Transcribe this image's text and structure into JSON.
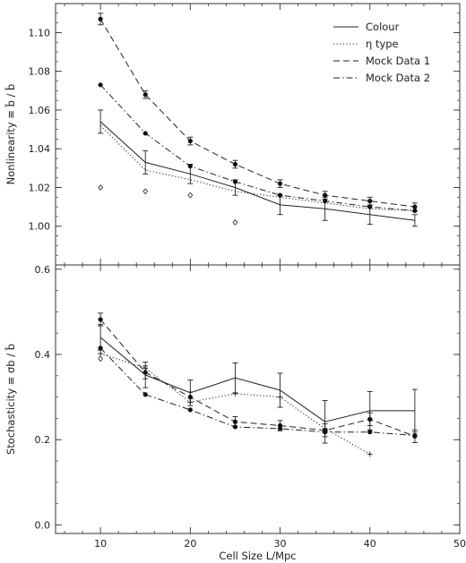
{
  "chart_data": [
    {
      "type": "line",
      "panel": "top",
      "ylabel": "Nonlinearity ≡ b̃ / b̂",
      "xlabel": "",
      "xlim": [
        5,
        50
      ],
      "ylim": [
        0.98,
        1.115
      ],
      "x_ticks": [
        10,
        20,
        30,
        40,
        50
      ],
      "y_ticks": [
        1.0,
        1.02,
        1.04,
        1.06,
        1.08,
        1.1
      ],
      "y_tick_labels": [
        "1.00",
        "1.02",
        "1.04",
        "1.06",
        "1.08",
        "1.10"
      ],
      "grid": false,
      "legend": {
        "placement": "top-right",
        "entries": [
          {
            "label": "Colour",
            "style": "solid"
          },
          {
            "label": "η type",
            "style": "dotted"
          },
          {
            "label": "Mock Data 1",
            "style": "dashed"
          },
          {
            "label": "Mock Data 2",
            "style": "dashdot"
          }
        ]
      },
      "series": [
        {
          "name": "Colour",
          "style": "solid",
          "x": [
            10,
            15,
            20,
            25,
            30,
            35,
            40,
            45
          ],
          "y": [
            1.054,
            1.033,
            1.027,
            1.02,
            1.011,
            1.009,
            1.006,
            1.003
          ],
          "err": [
            0.006,
            0.006,
            0.005,
            0.004,
            0.005,
            0.006,
            0.005,
            0.003
          ]
        },
        {
          "name": "η type",
          "style": "dotted",
          "x": [
            10,
            15,
            20,
            25,
            30,
            35,
            40,
            45
          ],
          "y": [
            1.052,
            1.029,
            1.024,
            1.018,
            1.015,
            1.012,
            1.009,
            1.008
          ]
        },
        {
          "name": "Mock Data 1",
          "style": "dashed",
          "marker": "filled-circle",
          "x": [
            10,
            15,
            20,
            25,
            30,
            35,
            40,
            45
          ],
          "y": [
            1.107,
            1.068,
            1.044,
            1.032,
            1.022,
            1.016,
            1.013,
            1.01
          ],
          "err": [
            0.003,
            0.002,
            0.002,
            0.002,
            0.002,
            0.002,
            0.002,
            0.002
          ]
        },
        {
          "name": "Mock Data 2",
          "style": "dashdot",
          "marker": "filled-circle",
          "x": [
            10,
            15,
            20,
            25,
            30,
            35,
            40,
            45
          ],
          "y": [
            1.073,
            1.048,
            1.031,
            1.023,
            1.016,
            1.013,
            1.01,
            1.008
          ]
        },
        {
          "style": "marker-only",
          "marker": "diamond",
          "x": [
            10,
            15,
            20,
            25
          ],
          "y": [
            1.02,
            1.018,
            1.016,
            1.002
          ]
        }
      ]
    },
    {
      "type": "line",
      "panel": "bottom",
      "ylabel": "Stochasticity ≡ σb / b̂",
      "xlabel": "Cell Size L/Mpc",
      "xlim": [
        5,
        50
      ],
      "ylim": [
        -0.02,
        0.61
      ],
      "x_ticks": [
        10,
        20,
        30,
        40,
        50
      ],
      "y_ticks": [
        0.0,
        0.2,
        0.4,
        0.6
      ],
      "y_tick_labels": [
        "0.0",
        "0.2",
        "0.4",
        "0.6"
      ],
      "grid": false,
      "series": [
        {
          "name": "Colour",
          "style": "solid",
          "x": [
            10,
            15,
            20,
            25,
            30,
            35,
            40,
            45
          ],
          "y": [
            0.44,
            0.352,
            0.31,
            0.345,
            0.316,
            0.242,
            0.268,
            0.268
          ],
          "err": [
            0.03,
            0.03,
            0.03,
            0.035,
            0.04,
            0.05,
            0.045,
            0.05
          ]
        },
        {
          "name": "η type",
          "style": "dotted",
          "marker": "plus",
          "x": [
            10,
            15,
            20,
            25,
            30,
            35,
            40
          ],
          "y": [
            0.402,
            0.368,
            0.288,
            0.308,
            0.3,
            0.226,
            0.166
          ]
        },
        {
          "name": "Mock Data 1",
          "style": "dashed",
          "marker": "filled-circle",
          "x": [
            10,
            15,
            20,
            25,
            30,
            35,
            40,
            45
          ],
          "y": [
            0.482,
            0.358,
            0.3,
            0.242,
            0.233,
            0.222,
            0.248,
            0.208
          ],
          "err": [
            0.015,
            0.015,
            0.012,
            0.012,
            0.012,
            0.015,
            0.015,
            0.015
          ]
        },
        {
          "name": "Mock Data 2",
          "style": "dashdot",
          "marker": "filled-circle",
          "x": [
            10,
            15,
            20,
            25,
            30,
            35,
            40,
            45
          ],
          "y": [
            0.415,
            0.306,
            0.27,
            0.23,
            0.226,
            0.218,
            0.218,
            0.21
          ]
        },
        {
          "style": "marker-only",
          "marker": "diamond",
          "x": [
            10
          ],
          "y": [
            0.39
          ]
        }
      ]
    }
  ]
}
